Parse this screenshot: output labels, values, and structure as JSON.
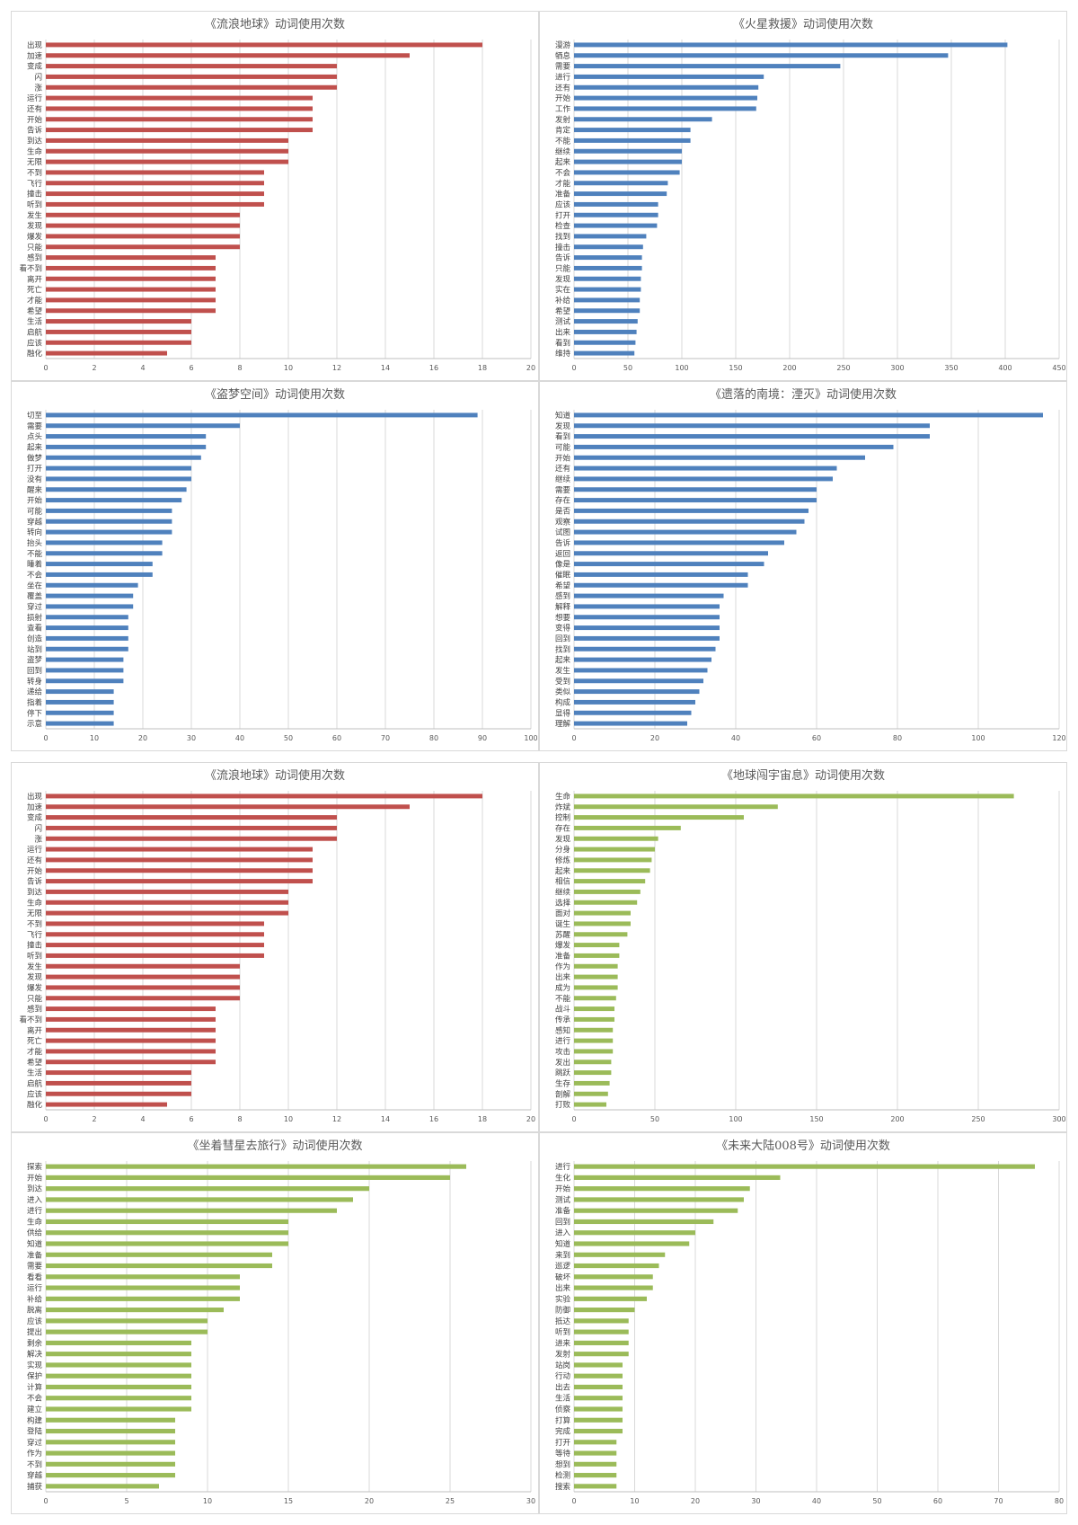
{
  "chart_data": [
    {
      "type": "bar",
      "title": "《流浪地球》动词使用次数",
      "color": "#c0504d",
      "xlim": [
        0,
        20
      ],
      "ticks": [
        0,
        2,
        4,
        6,
        8,
        10,
        12,
        14,
        16,
        18,
        20
      ],
      "categories": [
        "出现",
        "加速",
        "变成",
        "闪",
        "涨",
        "运行",
        "还有",
        "开始",
        "告诉",
        "到达",
        "生命",
        "无限",
        "不到",
        "飞行",
        "撞击",
        "听到",
        "发生",
        "发现",
        "爆发",
        "只能",
        "感到",
        "看不到",
        "离开",
        "死亡",
        "才能",
        "希望",
        "生活",
        "启航",
        "应该",
        "融化"
      ],
      "values": [
        18,
        15,
        12,
        12,
        12,
        11,
        11,
        11,
        11,
        10,
        10,
        10,
        9,
        9,
        9,
        9,
        8,
        8,
        8,
        8,
        7,
        7,
        7,
        7,
        7,
        7,
        6,
        6,
        6,
        5
      ]
    },
    {
      "type": "bar",
      "title": "《火星救援》动词使用次数",
      "color": "#4f81bd",
      "xlim": [
        0,
        450
      ],
      "ticks": [
        0,
        50,
        100,
        150,
        200,
        250,
        300,
        350,
        400,
        450
      ],
      "categories": [
        "漫游",
        "牺息",
        "需要",
        "进行",
        "还有",
        "开始",
        "工作",
        "发射",
        "肯定",
        "不能",
        "继续",
        "起来",
        "不会",
        "才能",
        "准备",
        "应该",
        "打开",
        "检查",
        "找到",
        "撞击",
        "告诉",
        "只能",
        "发现",
        "实在",
        "补给",
        "希望",
        "测试",
        "出来",
        "看到",
        "维持"
      ],
      "values": [
        402,
        347,
        247,
        176,
        171,
        170,
        169,
        128,
        108,
        108,
        100,
        100,
        98,
        87,
        86,
        78,
        78,
        77,
        67,
        64,
        63,
        63,
        62,
        62,
        61,
        61,
        59,
        58,
        57,
        56
      ]
    },
    {
      "type": "bar",
      "title": "《盗梦空间》动词使用次数",
      "color": "#4f81bd",
      "xlim": [
        0,
        100
      ],
      "ticks": [
        0,
        10,
        20,
        30,
        40,
        50,
        60,
        70,
        80,
        90,
        100
      ],
      "categories": [
        "切至",
        "需要",
        "点头",
        "起来",
        "做梦",
        "打开",
        "没有",
        "醒来",
        "开始",
        "可能",
        "穿越",
        "转向",
        "抬头",
        "不能",
        "睡着",
        "不会",
        "坐在",
        "覆盖",
        "穿过",
        "损射",
        "查看",
        "创造",
        "站到",
        "盗梦",
        "回到",
        "转身",
        "递给",
        "指着",
        "停下",
        "示意"
      ],
      "values": [
        89,
        40,
        33,
        33,
        32,
        30,
        30,
        29,
        28,
        26,
        26,
        26,
        24,
        24,
        22,
        22,
        19,
        18,
        18,
        17,
        17,
        17,
        17,
        16,
        16,
        16,
        14,
        14,
        14,
        14
      ]
    },
    {
      "type": "bar",
      "title": "《遗落的南境：湮灭》动词使用次数",
      "color": "#4f81bd",
      "xlim": [
        0,
        120
      ],
      "ticks": [
        0,
        20,
        40,
        60,
        80,
        100,
        120
      ],
      "categories": [
        "知道",
        "发现",
        "看到",
        "可能",
        "开始",
        "还有",
        "继续",
        "需要",
        "存在",
        "是否",
        "观察",
        "试图",
        "告诉",
        "返回",
        "像是",
        "催眠",
        "希望",
        "感到",
        "解释",
        "想要",
        "变得",
        "回到",
        "找到",
        "起来",
        "发生",
        "受到",
        "类似",
        "构成",
        "显得",
        "理解"
      ],
      "values": [
        116,
        88,
        88,
        79,
        72,
        65,
        64,
        60,
        60,
        58,
        57,
        55,
        52,
        48,
        47,
        43,
        43,
        37,
        36,
        36,
        36,
        36,
        35,
        34,
        33,
        32,
        31,
        30,
        29,
        28
      ]
    },
    {
      "type": "bar",
      "title": "《流浪地球》动词使用次数",
      "color": "#c0504d",
      "xlim": [
        0,
        20
      ],
      "ticks": [
        0,
        2,
        4,
        6,
        8,
        10,
        12,
        14,
        16,
        18,
        20
      ],
      "categories": [
        "出现",
        "加速",
        "变成",
        "闪",
        "涨",
        "运行",
        "还有",
        "开始",
        "告诉",
        "到达",
        "生命",
        "无限",
        "不到",
        "飞行",
        "撞击",
        "听到",
        "发生",
        "发现",
        "爆发",
        "只能",
        "感到",
        "看不到",
        "离开",
        "死亡",
        "才能",
        "希望",
        "生活",
        "启航",
        "应该",
        "融化"
      ],
      "values": [
        18,
        15,
        12,
        12,
        12,
        11,
        11,
        11,
        11,
        10,
        10,
        10,
        9,
        9,
        9,
        9,
        8,
        8,
        8,
        8,
        7,
        7,
        7,
        7,
        7,
        7,
        6,
        6,
        6,
        5
      ]
    },
    {
      "type": "bar",
      "title": "《地球闯宇宙息》动词使用次数",
      "color": "#9bbb59",
      "xlim": [
        0,
        300
      ],
      "ticks": [
        0,
        50,
        100,
        150,
        200,
        250,
        300
      ],
      "categories": [
        "生命",
        "炸斌",
        "控制",
        "存在",
        "发现",
        "分身",
        "修炼",
        "起来",
        "相信",
        "继续",
        "选择",
        "面对",
        "诞生",
        "苏醒",
        "爆发",
        "准备",
        "作为",
        "出来",
        "成为",
        "不能",
        "战斗",
        "传承",
        "感知",
        "进行",
        "攻击",
        "发出",
        "跳跃",
        "生存",
        "剖解",
        "打败"
      ],
      "values": [
        272,
        126,
        105,
        66,
        52,
        50,
        48,
        47,
        44,
        41,
        39,
        35,
        35,
        33,
        28,
        28,
        27,
        27,
        27,
        26,
        25,
        25,
        24,
        24,
        24,
        23,
        23,
        22,
        21,
        20
      ]
    },
    {
      "type": "bar",
      "title": "《坐着彗星去旅行》动词使用次数",
      "color": "#9bbb59",
      "xlim": [
        0,
        30
      ],
      "ticks": [
        0,
        5,
        10,
        15,
        20,
        25,
        30
      ],
      "categories": [
        "探索",
        "开始",
        "到达",
        "进入",
        "进行",
        "生命",
        "供给",
        "知道",
        "准备",
        "需要",
        "看看",
        "运行",
        "补给",
        "脱离",
        "应该",
        "提出",
        "剩余",
        "解决",
        "实现",
        "保护",
        "计算",
        "不会",
        "建立",
        "构建",
        "登陆",
        "穿过",
        "作为",
        "不到",
        "穿越",
        "捕获"
      ],
      "values": [
        26,
        25,
        20,
        19,
        18,
        15,
        15,
        15,
        14,
        14,
        12,
        12,
        12,
        11,
        10,
        10,
        9,
        9,
        9,
        9,
        9,
        9,
        9,
        8,
        8,
        8,
        8,
        8,
        8,
        7
      ]
    },
    {
      "type": "bar",
      "title": "《未来大陆008号》动词使用次数",
      "color": "#9bbb59",
      "xlim": [
        0,
        80
      ],
      "ticks": [
        0,
        10,
        20,
        30,
        40,
        50,
        60,
        70,
        80
      ],
      "categories": [
        "进行",
        "生化",
        "开始",
        "测试",
        "准备",
        "回到",
        "进入",
        "知道",
        "来到",
        "巡逻",
        "破坏",
        "出来",
        "实验",
        "防御",
        "抵达",
        "听到",
        "进来",
        "发射",
        "站岗",
        "行动",
        "出去",
        "生活",
        "侦察",
        "打算",
        "完成",
        "打开",
        "等待",
        "想到",
        "检测",
        "搜索"
      ],
      "values": [
        76,
        34,
        29,
        28,
        27,
        23,
        20,
        19,
        15,
        14,
        13,
        13,
        12,
        10,
        9,
        9,
        9,
        9,
        8,
        8,
        8,
        8,
        8,
        8,
        8,
        7,
        7,
        7,
        7,
        7
      ]
    }
  ]
}
